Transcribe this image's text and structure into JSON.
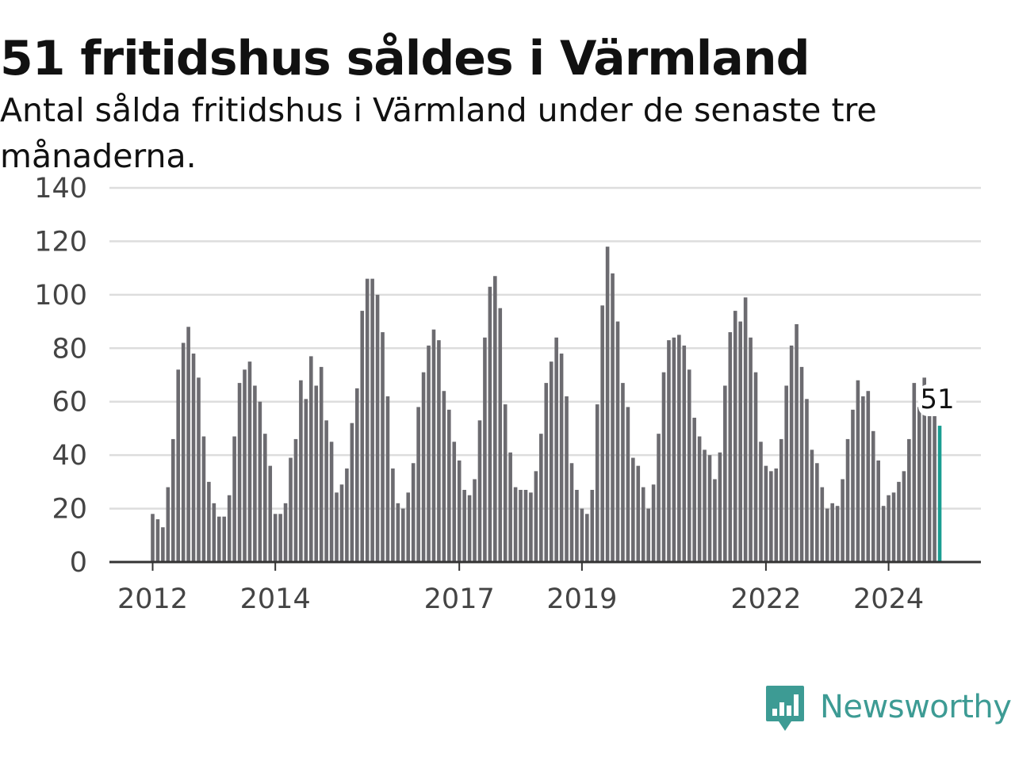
{
  "header": {
    "title": "51 fritidshus såldes i Värmland",
    "subtitle": "Antal sålda fritidshus i Värmland under de senaste tre månaderna."
  },
  "brand": {
    "logo_text": "Newsworthy",
    "logo_icon": "newsworthy-bar-chart-icon",
    "color": "#3d9b94"
  },
  "colors": {
    "bar": "#6c6b70",
    "highlight": "#1a9e92",
    "grid": "#dddddd"
  },
  "chart_data": {
    "type": "bar",
    "title": "51 fritidshus såldes i Värmland",
    "subtitle": "Antal sålda fritidshus i Värmland under de senaste tre månaderna.",
    "xlabel": "",
    "ylabel": "",
    "ylim": [
      0,
      140
    ],
    "y_ticks": [
      0,
      20,
      40,
      60,
      80,
      100,
      120,
      140
    ],
    "x_ticks": [
      "2012",
      "2014",
      "2017",
      "2019",
      "2022",
      "2024"
    ],
    "grid": true,
    "start": "2012-01",
    "frequency": "monthly",
    "values": [
      18,
      16,
      13,
      28,
      46,
      72,
      82,
      88,
      78,
      69,
      47,
      30,
      22,
      17,
      17,
      25,
      47,
      67,
      72,
      75,
      66,
      60,
      48,
      36,
      18,
      18,
      22,
      39,
      46,
      68,
      61,
      77,
      66,
      73,
      53,
      45,
      26,
      29,
      35,
      52,
      65,
      94,
      106,
      106,
      100,
      86,
      62,
      35,
      22,
      20,
      26,
      37,
      58,
      71,
      81,
      87,
      83,
      64,
      57,
      45,
      38,
      27,
      25,
      31,
      53,
      84,
      103,
      107,
      95,
      59,
      41,
      28,
      27,
      27,
      26,
      34,
      48,
      67,
      75,
      84,
      78,
      62,
      37,
      27,
      20,
      18,
      27,
      59,
      96,
      118,
      108,
      90,
      67,
      58,
      39,
      36,
      28,
      20,
      29,
      48,
      71,
      83,
      84,
      85,
      81,
      72,
      54,
      47,
      42,
      40,
      31,
      41,
      66,
      86,
      94,
      90,
      99,
      84,
      71,
      45,
      36,
      34,
      35,
      46,
      66,
      81,
      89,
      73,
      61,
      42,
      37,
      28,
      20,
      22,
      21,
      31,
      46,
      57,
      68,
      62,
      64,
      49,
      38,
      21,
      25,
      26,
      30,
      34,
      46,
      67,
      58,
      69,
      56,
      57,
      51
    ],
    "highlight_last": true,
    "annotation": {
      "label": "51"
    }
  }
}
